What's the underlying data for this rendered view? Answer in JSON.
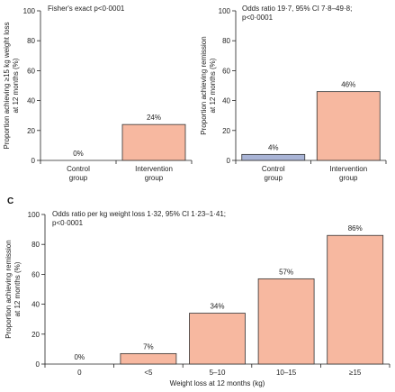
{
  "chart_data": [
    {
      "type": "bar",
      "panel_label": "",
      "categories": [
        [
          "Control",
          "group"
        ],
        [
          "Intervention",
          "group"
        ]
      ],
      "values": [
        0,
        24
      ],
      "data_labels": [
        "0%",
        "24%"
      ],
      "bar_colors": [
        "#f7b8a0",
        "#f7b8a0"
      ],
      "ylabel": [
        "Proportion achieving ≥15 kg weight loss",
        "at 12 months (%)"
      ],
      "xlabel": "",
      "annotation": [
        "Fisher's exact p<0·0001"
      ],
      "yticks": [
        "0",
        "20",
        "40",
        "60",
        "80",
        "100"
      ],
      "ylim": [
        0,
        100
      ]
    },
    {
      "type": "bar",
      "panel_label": "",
      "categories": [
        [
          "Control",
          "group"
        ],
        [
          "Intervention",
          "group"
        ]
      ],
      "values": [
        4,
        46
      ],
      "data_labels": [
        "4%",
        "46%"
      ],
      "bar_colors": [
        "#a9b4d6",
        "#f7b8a0"
      ],
      "ylabel": [
        "Proportion achieving remission",
        "at 12 months (%)"
      ],
      "xlabel": "",
      "annotation": [
        "Odds ratio 19·7, 95% CI 7·8–49·8;",
        "p<0·0001"
      ],
      "yticks": [
        "0",
        "20",
        "40",
        "60",
        "80",
        "100"
      ],
      "ylim": [
        0,
        100
      ]
    },
    {
      "type": "bar",
      "panel_label": "C",
      "categories": [
        [
          "0"
        ],
        [
          "<5"
        ],
        [
          "5–10"
        ],
        [
          "10–15"
        ],
        [
          "≥15"
        ]
      ],
      "values": [
        0,
        7,
        34,
        57,
        86
      ],
      "data_labels": [
        "0%",
        "7%",
        "34%",
        "57%",
        "86%"
      ],
      "bar_colors": [
        "#f7b8a0",
        "#f7b8a0",
        "#f7b8a0",
        "#f7b8a0",
        "#f7b8a0"
      ],
      "ylabel": [
        "Proportion achieving remission",
        "at 12 months (%)"
      ],
      "xlabel": "Weight loss at 12 months (kg)",
      "annotation": [
        "Odds ratio per kg weight loss 1·32, 95% CI 1·23–1·41;",
        "p<0·0001"
      ],
      "yticks": [
        "0",
        "20",
        "40",
        "60",
        "80",
        "100"
      ],
      "ylim": [
        0,
        100
      ]
    }
  ]
}
